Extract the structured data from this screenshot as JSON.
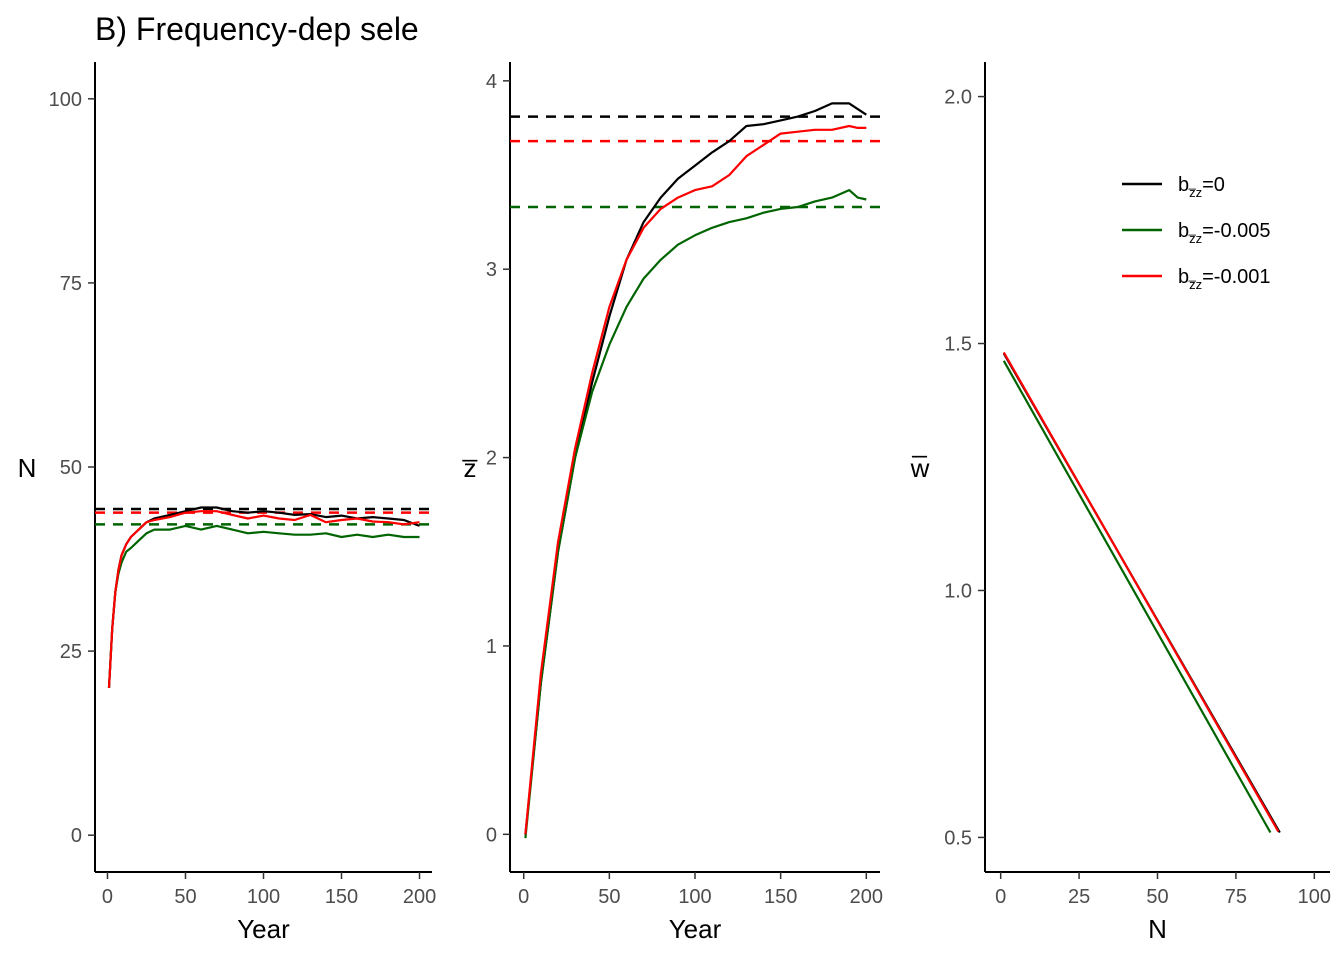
{
  "title": "B) Frequency-dep sele",
  "colors": {
    "black": "#000000",
    "green": "#006400",
    "red": "#ff0000"
  },
  "legend": {
    "position": "top-right of third panel",
    "entries": [
      {
        "prefix": "b",
        "sub": "z̅z",
        "suffix": "=0",
        "color": "#000000"
      },
      {
        "prefix": "b",
        "sub": "z̅z",
        "suffix": "=-0.005",
        "color": "#006400"
      },
      {
        "prefix": "b",
        "sub": "z̅z",
        "suffix": "=-0.001",
        "color": "#ff0000"
      }
    ]
  },
  "chart_data": [
    {
      "type": "line",
      "xlabel": "Year",
      "ylabel": "N",
      "xlim": [
        -8,
        208
      ],
      "ylim": [
        -5,
        105
      ],
      "xticks": [
        0,
        50,
        100,
        150,
        200
      ],
      "yticks": [
        0,
        25,
        50,
        75,
        100
      ],
      "grid": false,
      "hlines": [
        {
          "series": "b=0",
          "y": 44.3,
          "color": "#000000",
          "dash": true
        },
        {
          "series": "b=-0.005",
          "y": 42.2,
          "color": "#006400",
          "dash": true
        },
        {
          "series": "b=-0.001",
          "y": 43.8,
          "color": "#ff0000",
          "dash": true
        }
      ],
      "series": [
        {
          "color": "#000000",
          "x": [
            1,
            3,
            5,
            7,
            9,
            12,
            15,
            20,
            25,
            30,
            40,
            50,
            60,
            70,
            80,
            90,
            100,
            110,
            120,
            130,
            140,
            150,
            160,
            170,
            180,
            190,
            200
          ],
          "y": [
            20,
            28,
            33,
            36,
            38,
            39.5,
            40.5,
            41.5,
            42.5,
            43,
            43.5,
            44,
            44.5,
            44.5,
            44,
            43.8,
            44,
            43.8,
            43.5,
            43.6,
            43.2,
            43.4,
            43,
            43.2,
            43,
            42.8,
            42
          ]
        },
        {
          "color": "#006400",
          "x": [
            1,
            3,
            5,
            7,
            9,
            12,
            15,
            20,
            25,
            30,
            40,
            50,
            60,
            70,
            80,
            90,
            100,
            110,
            120,
            130,
            140,
            150,
            160,
            170,
            180,
            190,
            200
          ],
          "y": [
            20,
            28,
            33,
            35.5,
            37,
            38.5,
            39,
            40,
            41,
            41.5,
            41.5,
            42,
            41.5,
            42,
            41.5,
            41,
            41.2,
            41,
            40.8,
            40.8,
            41,
            40.5,
            40.8,
            40.5,
            40.8,
            40.5,
            40.5
          ]
        },
        {
          "color": "#ff0000",
          "x": [
            1,
            3,
            5,
            7,
            9,
            12,
            15,
            20,
            25,
            30,
            40,
            50,
            60,
            70,
            80,
            90,
            100,
            110,
            120,
            130,
            140,
            150,
            160,
            170,
            180,
            190,
            200
          ],
          "y": [
            20,
            28,
            33,
            36,
            38,
            39.5,
            40.5,
            41.5,
            42.5,
            42.8,
            43.2,
            43.8,
            44,
            44,
            43.5,
            43,
            43.4,
            43,
            42.8,
            43.5,
            42.5,
            42.8,
            43,
            42.6,
            42.5,
            42.2,
            42.5
          ]
        }
      ]
    },
    {
      "type": "line",
      "xlabel": "Year",
      "ylabel": "z̅",
      "xlim": [
        -8,
        208
      ],
      "ylim": [
        -0.2,
        4.1
      ],
      "xticks": [
        0,
        50,
        100,
        150,
        200
      ],
      "yticks": [
        0,
        1,
        2,
        3,
        4
      ],
      "grid": false,
      "hlines": [
        {
          "series": "b=0",
          "y": 3.81,
          "color": "#000000",
          "dash": true
        },
        {
          "series": "b=-0.005",
          "y": 3.33,
          "color": "#006400",
          "dash": true
        },
        {
          "series": "b=-0.001",
          "y": 3.68,
          "color": "#ff0000",
          "dash": true
        }
      ],
      "series": [
        {
          "color": "#000000",
          "x": [
            1,
            10,
            20,
            30,
            40,
            50,
            60,
            70,
            80,
            90,
            100,
            110,
            120,
            130,
            140,
            150,
            160,
            170,
            180,
            190,
            195,
            200
          ],
          "y": [
            0,
            0.8,
            1.5,
            2.0,
            2.4,
            2.75,
            3.05,
            3.25,
            3.38,
            3.48,
            3.55,
            3.62,
            3.68,
            3.76,
            3.77,
            3.79,
            3.81,
            3.84,
            3.88,
            3.88,
            3.85,
            3.82
          ]
        },
        {
          "color": "#006400",
          "x": [
            1,
            10,
            20,
            30,
            40,
            50,
            60,
            70,
            80,
            90,
            100,
            110,
            120,
            130,
            140,
            150,
            160,
            170,
            180,
            190,
            195,
            200
          ],
          "y": [
            -0.02,
            0.8,
            1.5,
            2.0,
            2.35,
            2.6,
            2.8,
            2.95,
            3.05,
            3.13,
            3.18,
            3.22,
            3.25,
            3.27,
            3.3,
            3.32,
            3.33,
            3.36,
            3.38,
            3.42,
            3.38,
            3.37
          ]
        },
        {
          "color": "#ff0000",
          "x": [
            1,
            10,
            20,
            30,
            40,
            50,
            60,
            70,
            80,
            90,
            100,
            110,
            120,
            130,
            140,
            150,
            160,
            170,
            180,
            190,
            195,
            200
          ],
          "y": [
            0,
            0.85,
            1.55,
            2.05,
            2.45,
            2.8,
            3.05,
            3.22,
            3.32,
            3.38,
            3.42,
            3.44,
            3.5,
            3.6,
            3.66,
            3.72,
            3.73,
            3.74,
            3.74,
            3.76,
            3.75,
            3.75
          ]
        }
      ]
    },
    {
      "type": "line",
      "xlabel": "N",
      "ylabel": "w̅",
      "xlim": [
        -5,
        105
      ],
      "ylim": [
        0.43,
        2.07
      ],
      "xticks": [
        0,
        25,
        50,
        75,
        100
      ],
      "yticks": [
        0.5,
        1.0,
        1.5,
        2.0
      ],
      "ytick_labels": [
        "0.5",
        "1.0",
        "1.5",
        "2.0"
      ],
      "grid": false,
      "series": [
        {
          "color": "#000000",
          "x": [
            1,
            89
          ],
          "y": [
            1.48,
            0.51
          ]
        },
        {
          "color": "#006400",
          "x": [
            1,
            86
          ],
          "y": [
            1.465,
            0.51
          ]
        },
        {
          "color": "#ff0000",
          "x": [
            1,
            88.5
          ],
          "y": [
            1.482,
            0.512
          ]
        }
      ]
    }
  ]
}
